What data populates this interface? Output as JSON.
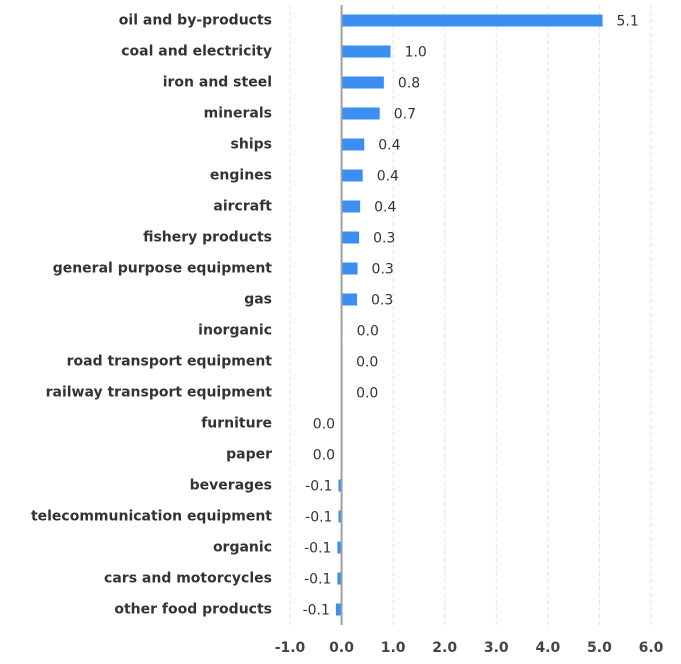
{
  "chart_data": {
    "type": "barh",
    "categories": [
      "oil and by-products",
      "coal and electricity",
      "iron and steel",
      "minerals",
      "ships",
      "engines",
      "aircraft",
      "fishery products",
      "general purpose equipment",
      "gas",
      "inorganic",
      "road transport equipment",
      "railway transport equipment",
      "furniture",
      "paper",
      "beverages",
      "telecommunication equipment",
      "organic",
      "cars and motorcycles",
      "other food products"
    ],
    "values": [
      5.06,
      0.95,
      0.82,
      0.74,
      0.44,
      0.41,
      0.36,
      0.34,
      0.31,
      0.3,
      0.02,
      0.01,
      0.01,
      -0.01,
      -0.01,
      -0.06,
      -0.06,
      -0.08,
      -0.08,
      -0.11
    ],
    "value_labels": [
      "5.1",
      "1.0",
      "0.8",
      "0.7",
      "0.4",
      "0.4",
      "0.4",
      "0.3",
      "0.3",
      "0.3",
      "0.0",
      "0.0",
      "0.0",
      "0.0",
      "0.0",
      "-0.1",
      "-0.1",
      "-0.1",
      "-0.1",
      "-0.1"
    ],
    "color": "#3b8ff0",
    "xlim": [
      -1,
      6
    ],
    "xticks": [
      {
        "value": -1,
        "label": "-1.0"
      },
      {
        "value": 0,
        "label": "0.0"
      },
      {
        "value": 1,
        "label": "1.0"
      },
      {
        "value": 2,
        "label": "2.0"
      },
      {
        "value": 3,
        "label": "3.0"
      },
      {
        "value": 4,
        "label": "4.0"
      },
      {
        "value": 5,
        "label": "5.0"
      },
      {
        "value": 6,
        "label": "6.0"
      }
    ],
    "grid": true
  }
}
